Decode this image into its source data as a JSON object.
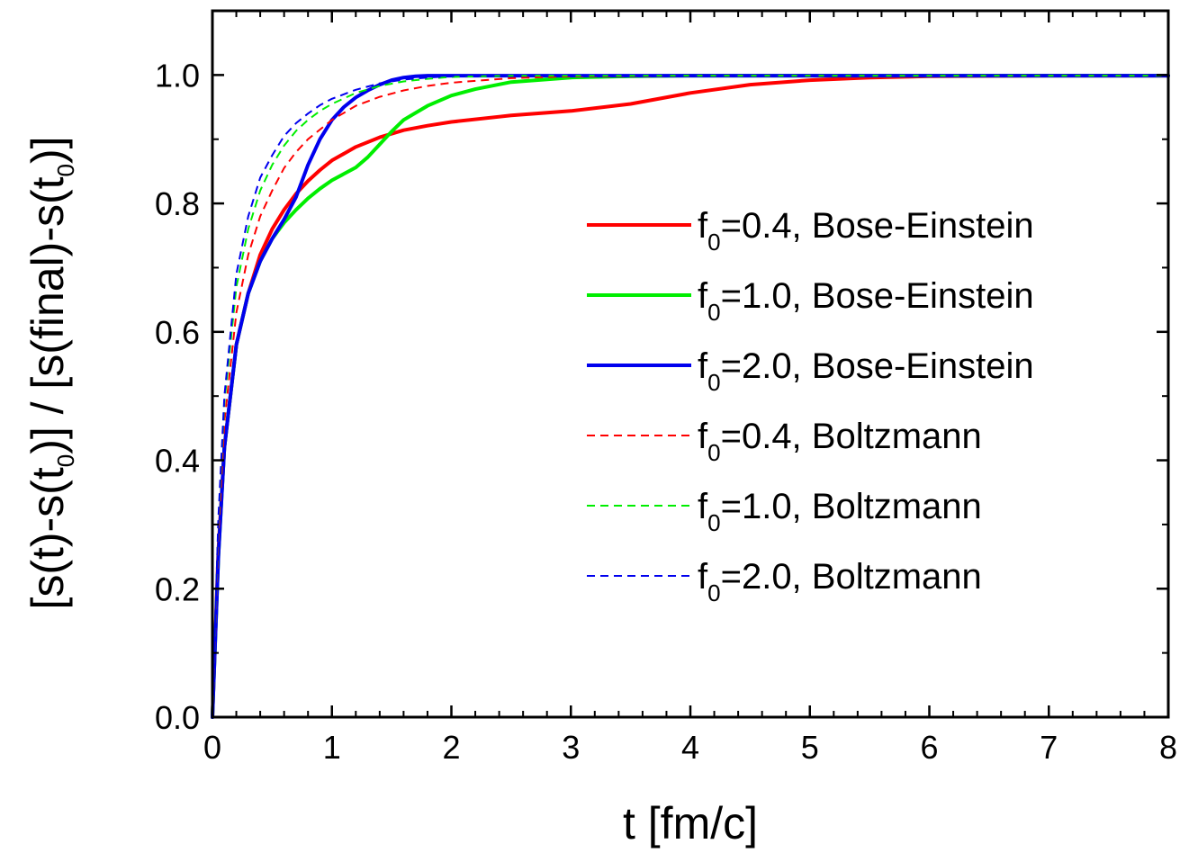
{
  "chart_data": {
    "type": "line",
    "xlabel": "t [fm/c]",
    "ylabel": {
      "parts": [
        "[s(t)-s(t",
        "0",
        ")] / [s(final)-s(t",
        "0",
        ")]"
      ]
    },
    "xlim": [
      0,
      8
    ],
    "ylim": [
      0,
      1.1
    ],
    "xticks": [
      0,
      1,
      2,
      3,
      4,
      5,
      6,
      7,
      8
    ],
    "xtick_labels": [
      "0",
      "1",
      "2",
      "3",
      "4",
      "5",
      "6",
      "7",
      "8"
    ],
    "yticks": [
      0.0,
      0.2,
      0.4,
      0.6,
      0.8,
      1.0
    ],
    "ytick_labels": [
      "0.0",
      "0.2",
      "0.4",
      "0.6",
      "0.8",
      "1.0"
    ],
    "grid": false,
    "legend_position": "right",
    "series": [
      {
        "label": {
          "pre": "f",
          "sub": "0",
          "post": "=0.4, Bose-Einstein"
        },
        "color": "#ff0000",
        "style": "solid",
        "x": [
          0,
          0.05,
          0.1,
          0.2,
          0.3,
          0.4,
          0.5,
          0.6,
          0.7,
          0.8,
          0.9,
          1.0,
          1.2,
          1.4,
          1.6,
          1.8,
          2.0,
          2.5,
          3.0,
          3.5,
          4.0,
          4.5,
          5.0,
          5.5,
          6.0,
          7.0,
          8.0
        ],
        "y": [
          0,
          0.26,
          0.42,
          0.58,
          0.66,
          0.72,
          0.76,
          0.79,
          0.815,
          0.835,
          0.852,
          0.867,
          0.888,
          0.903,
          0.914,
          0.921,
          0.927,
          0.937,
          0.944,
          0.955,
          0.972,
          0.985,
          0.992,
          0.996,
          0.998,
          0.999,
          0.999
        ]
      },
      {
        "label": {
          "pre": "f",
          "sub": "0",
          "post": "=1.0, Bose-Einstein"
        },
        "color": "#00ee00",
        "style": "solid",
        "x": [
          0,
          0.05,
          0.1,
          0.2,
          0.3,
          0.4,
          0.5,
          0.6,
          0.7,
          0.8,
          0.9,
          1.0,
          1.1,
          1.2,
          1.3,
          1.4,
          1.5,
          1.6,
          1.8,
          2.0,
          2.2,
          2.5,
          3.0,
          3.5,
          4.0,
          5.0,
          6.0,
          8.0
        ],
        "y": [
          0,
          0.25,
          0.42,
          0.58,
          0.66,
          0.71,
          0.745,
          0.77,
          0.79,
          0.808,
          0.823,
          0.836,
          0.846,
          0.856,
          0.872,
          0.892,
          0.912,
          0.93,
          0.952,
          0.968,
          0.978,
          0.989,
          0.996,
          0.998,
          0.999,
          0.999,
          0.999,
          0.999
        ]
      },
      {
        "label": {
          "pre": "f",
          "sub": "0",
          "post": "=2.0, Bose-Einstein"
        },
        "color": "#0000ee",
        "style": "solid",
        "x": [
          0,
          0.05,
          0.1,
          0.2,
          0.3,
          0.4,
          0.5,
          0.6,
          0.7,
          0.8,
          0.9,
          1.0,
          1.1,
          1.2,
          1.3,
          1.4,
          1.5,
          1.6,
          1.7,
          1.8,
          2.0,
          3.0,
          5.0,
          8.0
        ],
        "y": [
          0,
          0.25,
          0.42,
          0.58,
          0.66,
          0.71,
          0.745,
          0.775,
          0.81,
          0.86,
          0.9,
          0.93,
          0.95,
          0.965,
          0.976,
          0.985,
          0.992,
          0.996,
          0.998,
          0.999,
          0.999,
          0.999,
          0.999,
          0.999
        ]
      },
      {
        "label": {
          "pre": "f",
          "sub": "0",
          "post": "=0.4, Boltzmann"
        },
        "color": "#ff0000",
        "style": "dashed",
        "x": [
          0,
          0.05,
          0.1,
          0.2,
          0.3,
          0.4,
          0.5,
          0.6,
          0.7,
          0.8,
          0.9,
          1.0,
          1.2,
          1.4,
          1.6,
          1.8,
          2.0,
          2.5,
          3.0,
          4.0,
          6.0,
          8.0
        ],
        "y": [
          0,
          0.28,
          0.46,
          0.63,
          0.72,
          0.78,
          0.82,
          0.855,
          0.88,
          0.9,
          0.915,
          0.93,
          0.952,
          0.966,
          0.976,
          0.983,
          0.988,
          0.995,
          0.998,
          0.999,
          0.999,
          0.999
        ]
      },
      {
        "label": {
          "pre": "f",
          "sub": "0",
          "post": "=1.0, Boltzmann"
        },
        "color": "#00ee00",
        "style": "dashed",
        "x": [
          0,
          0.05,
          0.1,
          0.2,
          0.3,
          0.4,
          0.5,
          0.6,
          0.7,
          0.8,
          0.9,
          1.0,
          1.2,
          1.4,
          1.6,
          1.8,
          2.0,
          2.5,
          3.0,
          4.0,
          8.0
        ],
        "y": [
          0,
          0.3,
          0.49,
          0.67,
          0.76,
          0.82,
          0.86,
          0.89,
          0.913,
          0.93,
          0.944,
          0.955,
          0.972,
          0.983,
          0.99,
          0.994,
          0.997,
          0.999,
          0.999,
          0.999,
          0.999
        ]
      },
      {
        "label": {
          "pre": "f",
          "sub": "0",
          "post": "=2.0, Boltzmann"
        },
        "color": "#0000ee",
        "style": "dashed",
        "x": [
          0,
          0.05,
          0.1,
          0.2,
          0.3,
          0.4,
          0.5,
          0.6,
          0.7,
          0.8,
          0.9,
          1.0,
          1.2,
          1.4,
          1.6,
          1.8,
          2.0,
          2.5,
          3.0,
          4.0,
          8.0
        ],
        "y": [
          0,
          0.31,
          0.5,
          0.69,
          0.78,
          0.84,
          0.875,
          0.905,
          0.925,
          0.94,
          0.953,
          0.963,
          0.977,
          0.987,
          0.993,
          0.996,
          0.998,
          0.999,
          0.999,
          0.999,
          0.999
        ]
      }
    ]
  }
}
